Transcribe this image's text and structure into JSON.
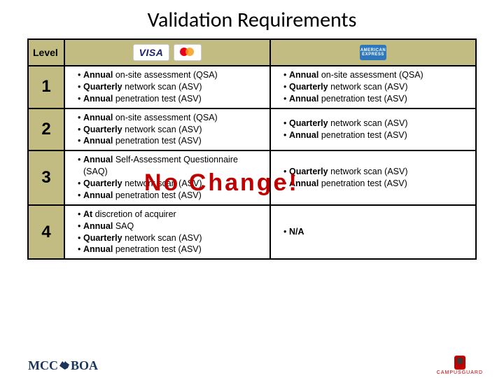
{
  "title": "Validation Requirements",
  "header": {
    "level_label": "Level",
    "logos": {
      "visa": "VISA",
      "amex": "AMERICAN EXPRESS"
    }
  },
  "rows": [
    {
      "level": "1",
      "mid": [
        {
          "bold": "Annual",
          "rest": " on-site assessment (QSA)"
        },
        {
          "bold": "Quarterly",
          "rest": " network scan (ASV)"
        },
        {
          "bold": "Annual",
          "rest": " penetration test (ASV)"
        }
      ],
      "right": [
        {
          "bold": "Annual",
          "rest": " on-site assessment (QSA)"
        },
        {
          "bold": "Quarterly",
          "rest": " network scan (ASV)"
        },
        {
          "bold": "Annual",
          "rest": " penetration test (ASV)"
        }
      ]
    },
    {
      "level": "2",
      "mid": [
        {
          "bold": "Annual",
          "rest": " on-site assessment (QSA)"
        },
        {
          "bold": "Quarterly",
          "rest": " network scan (ASV)"
        },
        {
          "bold": "Annual",
          "rest": " penetration test (ASV)"
        }
      ],
      "right": [
        {
          "bold": "Quarterly",
          "rest": " network scan (ASV)"
        },
        {
          "bold": "Annual",
          "rest": " penetration test (ASV)"
        }
      ]
    },
    {
      "level": "3",
      "mid": [
        {
          "bold": "Annual",
          "rest": " Self-Assessment Questionnaire (SAQ)"
        },
        {
          "bold": "Quarterly",
          "rest": " network scan (ASV)"
        },
        {
          "bold": "Annual",
          "rest": " penetration test (ASV)"
        }
      ],
      "right": [
        {
          "bold": "Quarterly",
          "rest": " network scan (ASV)"
        },
        {
          "bold": "Annual",
          "rest": " penetration test (ASV)"
        }
      ]
    },
    {
      "level": "4",
      "mid": [
        {
          "bold": "At",
          "rest": " discretion of acquirer"
        },
        {
          "bold": "Annual",
          "rest": " SAQ"
        },
        {
          "bold": "Quarterly",
          "rest": " network scan (ASV)"
        },
        {
          "bold": "Annual",
          "rest": " penetration test (ASV)"
        }
      ],
      "right": [
        {
          "bold": "N/A",
          "rest": ""
        }
      ]
    }
  ],
  "overlay_text": "No Change!",
  "footer": {
    "left": "MCCBOA",
    "right": "CAMPUSGUARD"
  },
  "colors": {
    "header_bg": "#c3bc82",
    "overlay": "#c00000",
    "border": "#000000"
  }
}
